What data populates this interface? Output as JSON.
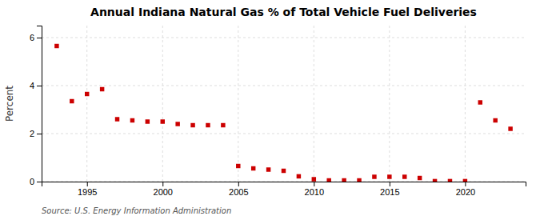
{
  "chart_data": {
    "type": "scatter",
    "title": "Annual Indiana Natural Gas % of Total Vehicle Fuel Deliveries",
    "ylabel": "Percent",
    "annotation": "Source: U.S. Energy Information Administration",
    "x": [
      1993,
      1994,
      1995,
      1996,
      1997,
      1998,
      1999,
      2000,
      2001,
      2002,
      2003,
      2004,
      2005,
      2006,
      2007,
      2008,
      2009,
      2010,
      2011,
      2012,
      2013,
      2014,
      2015,
      2016,
      2017,
      2018,
      2019,
      2020,
      2021,
      2022,
      2023
    ],
    "values": [
      5.65,
      3.35,
      3.65,
      3.85,
      2.6,
      2.55,
      2.5,
      2.5,
      2.4,
      2.35,
      2.35,
      2.35,
      0.65,
      0.55,
      0.5,
      0.45,
      0.22,
      0.1,
      0.05,
      0.05,
      0.05,
      0.2,
      0.2,
      0.2,
      0.15,
      0.02,
      0.02,
      0.02,
      3.3,
      2.55,
      2.2
    ],
    "color": "#cc0000",
    "marker": "square",
    "xlim": [
      1992,
      2024
    ],
    "ylim": [
      0,
      6.5
    ],
    "xticks": [
      1995,
      2000,
      2005,
      2010,
      2015,
      2020
    ],
    "yticks": [
      0,
      2,
      4,
      6
    ],
    "grid": true
  }
}
